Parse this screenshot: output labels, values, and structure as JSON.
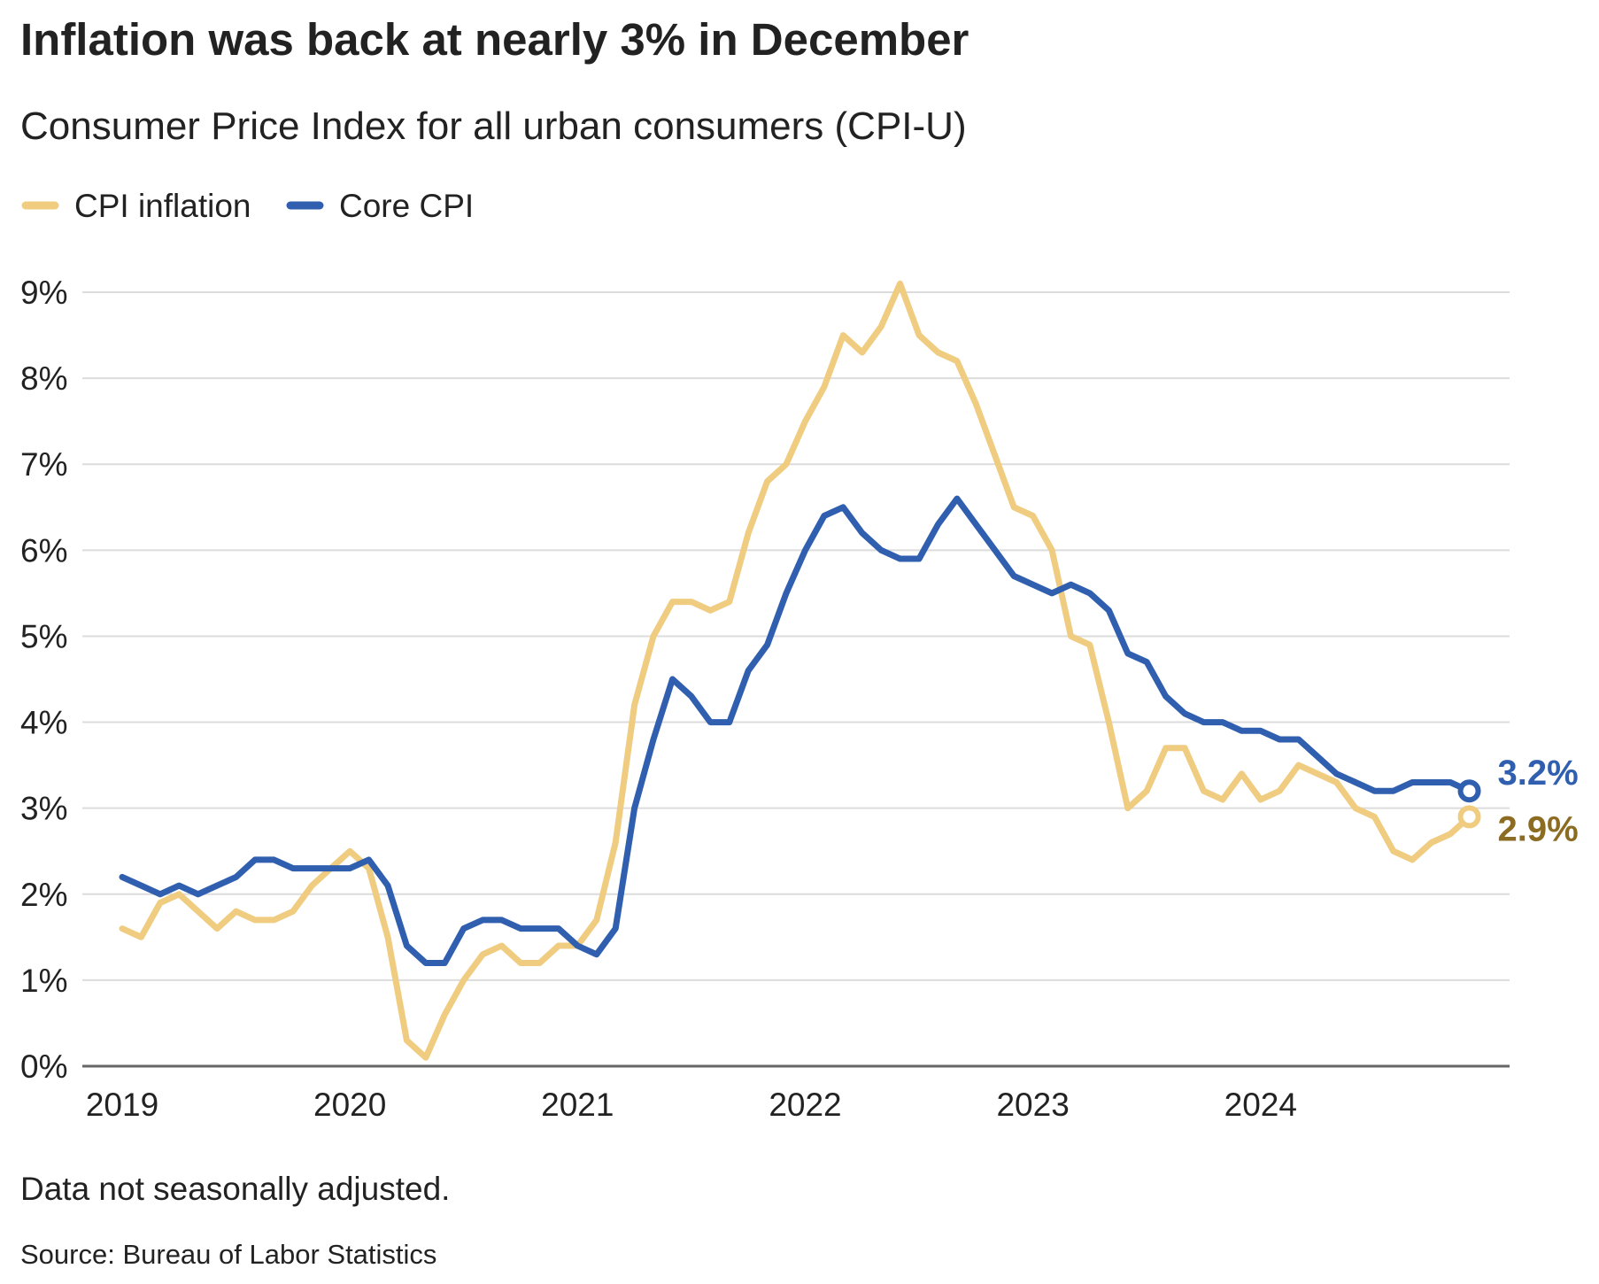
{
  "chart_data": {
    "type": "line",
    "title": "Inflation was back at nearly 3% in December",
    "subtitle": "Consumer Price Index for all urban consumers (CPI-U)",
    "xlabel": "",
    "ylabel": "",
    "ylim": [
      0,
      9
    ],
    "y_ticks": [
      "0%",
      "1%",
      "2%",
      "3%",
      "4%",
      "5%",
      "6%",
      "7%",
      "8%",
      "9%"
    ],
    "x_ticks": [
      "2019",
      "2020",
      "2021",
      "2022",
      "2023",
      "2024"
    ],
    "x_start": "2019-01",
    "x_frequency": "monthly",
    "grid": true,
    "legend_placement": "top-left",
    "series": [
      {
        "name": "CPI inflation",
        "color": "#efcc7f",
        "label_color": "#8b6c22",
        "end_label": "2.9%",
        "values": [
          1.6,
          1.5,
          1.9,
          2.0,
          1.8,
          1.6,
          1.8,
          1.7,
          1.7,
          1.8,
          2.1,
          2.3,
          2.5,
          2.3,
          1.5,
          0.3,
          0.1,
          0.6,
          1.0,
          1.3,
          1.4,
          1.2,
          1.2,
          1.4,
          1.4,
          1.7,
          2.6,
          4.2,
          5.0,
          5.4,
          5.4,
          5.3,
          5.4,
          6.2,
          6.8,
          7.0,
          7.5,
          7.9,
          8.5,
          8.3,
          8.6,
          9.1,
          8.5,
          8.3,
          8.2,
          7.7,
          7.1,
          6.5,
          6.4,
          6.0,
          5.0,
          4.9,
          4.0,
          3.0,
          3.2,
          3.7,
          3.7,
          3.2,
          3.1,
          3.4,
          3.1,
          3.2,
          3.5,
          3.4,
          3.3,
          3.0,
          2.9,
          2.5,
          2.4,
          2.6,
          2.7,
          2.9
        ]
      },
      {
        "name": "Core CPI",
        "color": "#2f5fae",
        "label_color": "#2f5fae",
        "end_label": "3.2%",
        "values": [
          2.2,
          2.1,
          2.0,
          2.1,
          2.0,
          2.1,
          2.2,
          2.4,
          2.4,
          2.3,
          2.3,
          2.3,
          2.3,
          2.4,
          2.1,
          1.4,
          1.2,
          1.2,
          1.6,
          1.7,
          1.7,
          1.6,
          1.6,
          1.6,
          1.4,
          1.3,
          1.6,
          3.0,
          3.8,
          4.5,
          4.3,
          4.0,
          4.0,
          4.6,
          4.9,
          5.5,
          6.0,
          6.4,
          6.5,
          6.2,
          6.0,
          5.9,
          5.9,
          6.3,
          6.6,
          6.3,
          6.0,
          5.7,
          5.6,
          5.5,
          5.6,
          5.5,
          5.3,
          4.8,
          4.7,
          4.3,
          4.1,
          4.0,
          4.0,
          3.9,
          3.9,
          3.8,
          3.8,
          3.6,
          3.4,
          3.3,
          3.2,
          3.2,
          3.3,
          3.3,
          3.3,
          3.2
        ]
      }
    ],
    "notes": "Data not seasonally adjusted.",
    "source": "Source: Bureau of Labor Statistics"
  }
}
